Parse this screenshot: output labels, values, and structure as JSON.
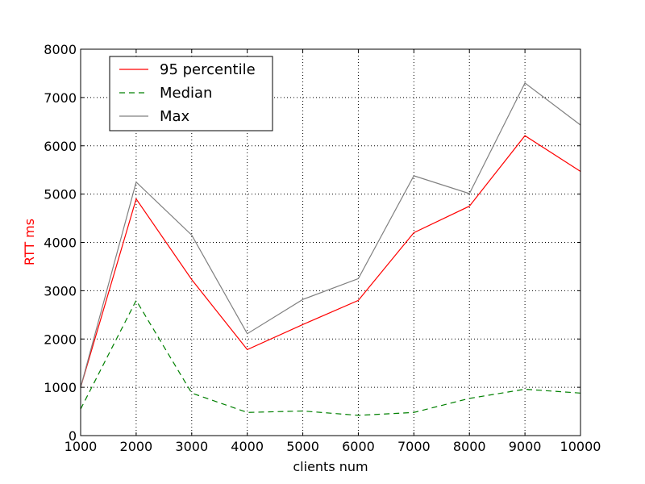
{
  "chart_data": {
    "type": "line",
    "title": "",
    "xlabel": "clients num",
    "ylabel": "RTT ms",
    "xlabel_color": "#000000",
    "ylabel_color": "#ff0000",
    "xlim": [
      1000,
      10000
    ],
    "ylim": [
      0,
      8000
    ],
    "x_ticks": [
      1000,
      2000,
      3000,
      4000,
      5000,
      6000,
      7000,
      8000,
      9000,
      10000
    ],
    "x_tick_labels": [
      "1000",
      "2000",
      "3000",
      "4000",
      "5000",
      "6000",
      "7000",
      "8000",
      "9000",
      "10000"
    ],
    "y_ticks": [
      0,
      1000,
      2000,
      3000,
      4000,
      5000,
      6000,
      7000,
      8000
    ],
    "y_tick_labels": [
      "0",
      "1000",
      "2000",
      "3000",
      "4000",
      "5000",
      "6000",
      "7000",
      "8000"
    ],
    "grid": true,
    "legend_position": "top-left",
    "x": [
      1000,
      2000,
      3000,
      4000,
      5000,
      6000,
      7000,
      8000,
      9000,
      10000
    ],
    "series": [
      {
        "name": "95 percentile",
        "color": "#ff0000",
        "dash": "solid",
        "values": [
          1000,
          4900,
          3230,
          1780,
          2300,
          2800,
          4200,
          4750,
          6210,
          5470
        ]
      },
      {
        "name": "Median",
        "color": "#008000",
        "dash": "dashed",
        "values": [
          550,
          2800,
          880,
          480,
          510,
          420,
          480,
          770,
          960,
          880
        ]
      },
      {
        "name": "Max",
        "color": "#808080",
        "dash": "solid",
        "values": [
          1000,
          5250,
          4150,
          2110,
          2820,
          3250,
          5380,
          5010,
          7300,
          6430
        ]
      }
    ]
  }
}
